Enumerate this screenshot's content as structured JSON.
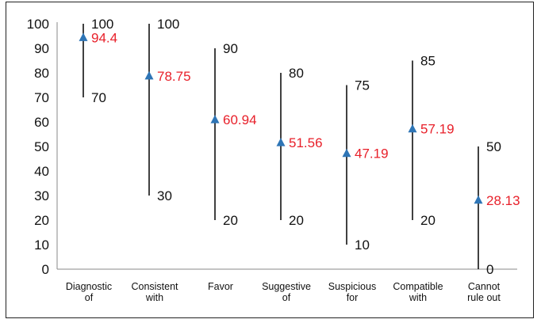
{
  "chart_data": {
    "type": "scatter",
    "subtype": "high-low with mean marker",
    "title": "",
    "xlabel": "",
    "ylabel": "",
    "ylim": [
      0,
      100
    ],
    "yticks": [
      "0",
      "10",
      "20",
      "30",
      "40",
      "50",
      "60",
      "70",
      "80",
      "90",
      "100"
    ],
    "grid": false,
    "legend": "none",
    "colors": {
      "marker": "#2e75b6",
      "value_label": "#e8202a",
      "range_line": "#111111",
      "axis": "#888888"
    },
    "categories": [
      {
        "lines": [
          "Diagnostic",
          "of"
        ],
        "high": 100,
        "low": 70,
        "mean": 94.4,
        "high_label": "100",
        "low_label": "70",
        "mean_label": "94.4"
      },
      {
        "lines": [
          "Consistent",
          "with"
        ],
        "high": 100,
        "low": 30,
        "mean": 78.75,
        "high_label": "100",
        "low_label": "30",
        "mean_label": "78.75"
      },
      {
        "lines": [
          "Favor"
        ],
        "high": 90,
        "low": 20,
        "mean": 60.94,
        "high_label": "90",
        "low_label": "20",
        "mean_label": "60.94"
      },
      {
        "lines": [
          "Suggestive",
          "of"
        ],
        "high": 80,
        "low": 20,
        "mean": 51.56,
        "high_label": "80",
        "low_label": "20",
        "mean_label": "51.56"
      },
      {
        "lines": [
          "Suspicious",
          "for"
        ],
        "high": 75,
        "low": 10,
        "mean": 47.19,
        "high_label": "75",
        "low_label": "10",
        "mean_label": "47.19"
      },
      {
        "lines": [
          "Compatible",
          "with"
        ],
        "high": 85,
        "low": 20,
        "mean": 57.19,
        "high_label": "85",
        "low_label": "20",
        "mean_label": "57.19"
      },
      {
        "lines": [
          "Cannot",
          "rule out"
        ],
        "high": 50,
        "low": 0,
        "mean": 28.13,
        "high_label": "50",
        "low_label": "0",
        "mean_label": "28.13"
      }
    ]
  }
}
